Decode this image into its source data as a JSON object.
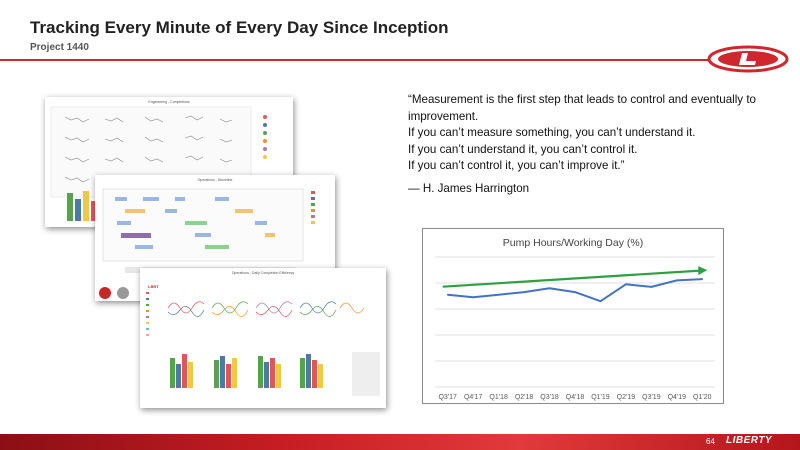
{
  "header": {
    "title": "Tracking Every Minute of Every Day Since Inception",
    "subtitle": "Project 1440"
  },
  "quote": {
    "lines": [
      "“Measurement is the first step that leads to control and eventually to improvement.",
      "If you can’t measure something, you can’t understand it.",
      "If you can’t understand it, you can’t control it.",
      "If you can’t control it, you can’t improve it.”"
    ],
    "attribution": "— H. James Harrington"
  },
  "screenshots": [
    {
      "title": "Engineering - Completions"
    },
    {
      "title": "Operations - Stoneline"
    },
    {
      "title": "Operations - Daily Completion Efficiency"
    }
  ],
  "colors": {
    "accent_red": "#d0262d",
    "series_line": "#4472c4",
    "trend_arrow": "#2ea043"
  },
  "chart_data": {
    "type": "line",
    "title": "Pump Hours/Working Day (%)",
    "categories": [
      "Q3'17",
      "Q4'17",
      "Q1'18",
      "Q2'18",
      "Q3'18",
      "Q4'18",
      "Q1'19",
      "Q2'19",
      "Q3'19",
      "Q4'19",
      "Q1'20"
    ],
    "values": [
      71,
      69,
      71,
      73,
      76,
      73,
      66,
      79,
      77,
      82,
      83
    ],
    "ylim": [
      0,
      100
    ],
    "grid": true,
    "trend_arrow": true
  },
  "footer": {
    "page_number": "64",
    "logo_text": "LIBERTY"
  }
}
